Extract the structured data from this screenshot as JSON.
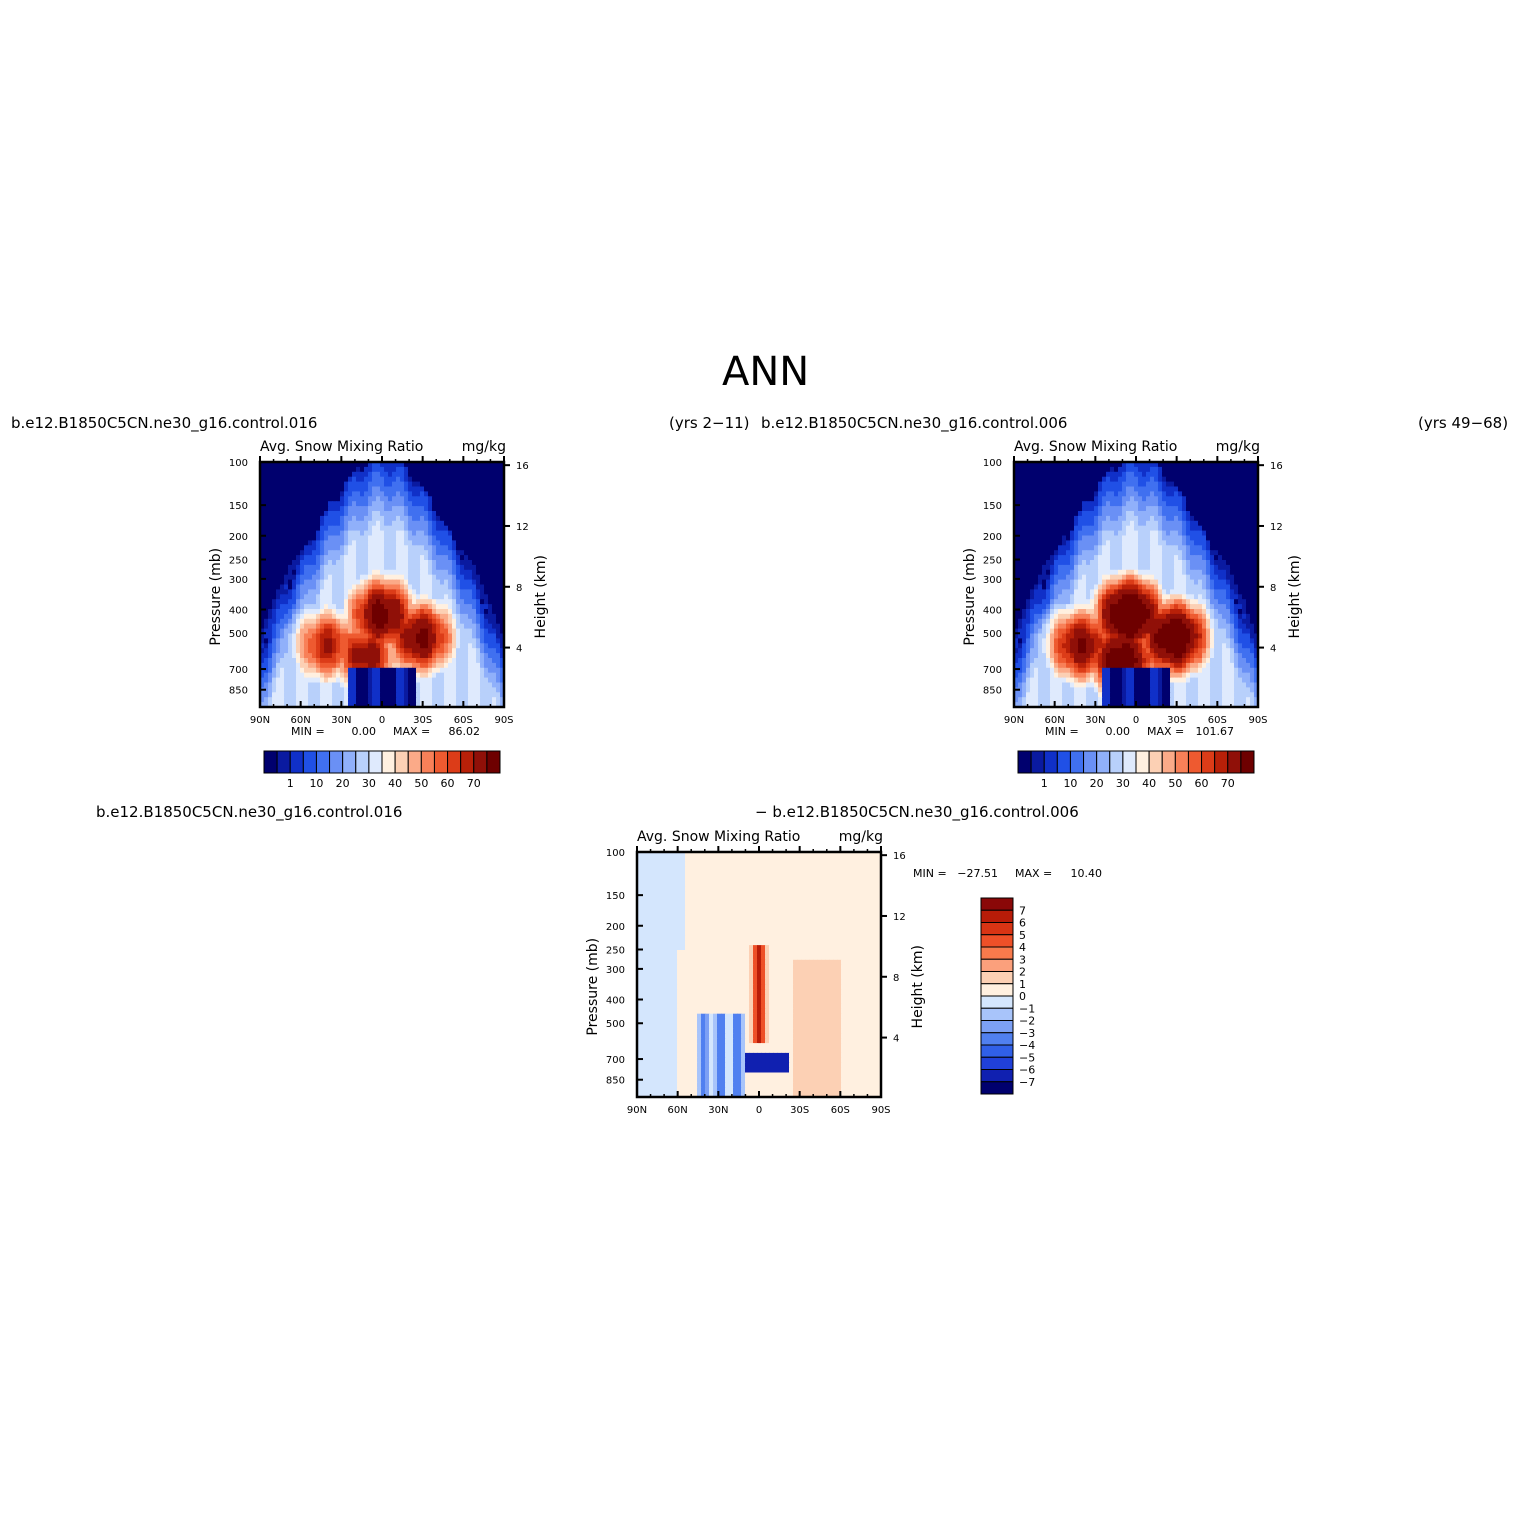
{
  "title": "ANN",
  "labels": {
    "case1": "b.e12.B1850C5CN.ne30_g16.control.016",
    "yrs1": "(yrs 2−11)",
    "case2": "b.e12.B1850C5CN.ne30_g16.control.006",
    "yrs2": "(yrs 49−68)",
    "diff_left": "b.e12.B1850C5CN.ne30_g16.control.016",
    "diff_right": "− b.e12.B1850C5CN.ne30_g16.control.006"
  },
  "colors": {
    "abs_palette": [
      "#00006e",
      "#0a1aa0",
      "#1030c8",
      "#2050e6",
      "#4070f0",
      "#6a90f5",
      "#90b0fa",
      "#b8d0fb",
      "#dfeafd",
      "#fff0e0",
      "#fcd0b4",
      "#fbaa88",
      "#f88058",
      "#ee5a30",
      "#dc3c18",
      "#b82008",
      "#901008",
      "#6e0000"
    ],
    "diff_palette": [
      "#00006e",
      "#1020b0",
      "#2040d8",
      "#3060e8",
      "#5080f0",
      "#7ca0f5",
      "#a8c4fa",
      "#d4e6fd",
      "#fff0e0",
      "#fcd0b4",
      "#fba07c",
      "#f87a4c",
      "#ee5028",
      "#d83414",
      "#b81c08",
      "#8a0808"
    ]
  },
  "chart_data": [
    {
      "type": "heatmap",
      "panel": "case1",
      "title": "Avg. Snow Mixing Ratio",
      "units": "mg/kg",
      "ylabel": "Pressure (mb)",
      "ylabel_right": "Height (km)",
      "x_ticks": [
        "90N",
        "60N",
        "30N",
        "0",
        "30S",
        "60S",
        "90S"
      ],
      "y_ticks": [
        "100",
        "150",
        "200",
        "250",
        "300",
        "400",
        "500",
        "700",
        "850"
      ],
      "y_right_ticks": [
        "16",
        "12",
        "8",
        "4"
      ],
      "ylim": [
        1000,
        100
      ],
      "stats": {
        "min_label": "MIN =",
        "min": "0.00",
        "max_label": "MAX =",
        "max": "86.02"
      },
      "colorbar_labels": [
        "1",
        "10",
        "20",
        "30",
        "40",
        "50",
        "60",
        "70"
      ],
      "blobs": [
        {
          "lat": 0,
          "p": 420,
          "value": 86
        },
        {
          "lat": -28,
          "p": 520,
          "value": 82
        },
        {
          "lat": 40,
          "p": 560,
          "value": 70
        },
        {
          "lat": 12,
          "p": 620,
          "value": 75
        }
      ]
    },
    {
      "type": "heatmap",
      "panel": "case2",
      "title": "Avg. Snow Mixing Ratio",
      "units": "mg/kg",
      "ylabel": "Pressure (mb)",
      "ylabel_right": "Height (km)",
      "x_ticks": [
        "90N",
        "60N",
        "30N",
        "0",
        "30S",
        "60S",
        "90S"
      ],
      "y_ticks": [
        "100",
        "150",
        "200",
        "250",
        "300",
        "400",
        "500",
        "700",
        "850"
      ],
      "y_right_ticks": [
        "16",
        "12",
        "8",
        "4"
      ],
      "ylim": [
        1000,
        100
      ],
      "stats": {
        "min_label": "MIN =",
        "min": "0.00",
        "max_label": "MAX =",
        "max": "101.67"
      },
      "colorbar_labels": [
        "1",
        "10",
        "20",
        "30",
        "40",
        "50",
        "60",
        "70"
      ],
      "blobs": [
        {
          "lat": 5,
          "p": 420,
          "value": 100
        },
        {
          "lat": -28,
          "p": 520,
          "value": 95
        },
        {
          "lat": 40,
          "p": 560,
          "value": 80
        },
        {
          "lat": 10,
          "p": 640,
          "value": 90
        }
      ]
    },
    {
      "type": "heatmap",
      "panel": "diff",
      "title": "Avg. Snow Mixing Ratio",
      "units": "mg/kg",
      "ylabel": "Pressure (mb)",
      "ylabel_right": "Height (km)",
      "x_ticks": [
        "90N",
        "60N",
        "30N",
        "0",
        "30S",
        "60S",
        "90S"
      ],
      "y_ticks": [
        "100",
        "150",
        "200",
        "250",
        "300",
        "400",
        "500",
        "700",
        "850"
      ],
      "y_right_ticks": [
        "16",
        "12",
        "8",
        "4"
      ],
      "ylim": [
        1000,
        100
      ],
      "stats": {
        "min_label": "MIN =",
        "min": "−27.51",
        "max_label": "MAX =",
        "max": "10.40"
      },
      "colorbar_labels": [
        "7",
        "6",
        "5",
        "4",
        "3",
        "2",
        "1",
        "0",
        "−1",
        "−2",
        "−3",
        "−4",
        "−5",
        "−6",
        "−7"
      ]
    }
  ]
}
